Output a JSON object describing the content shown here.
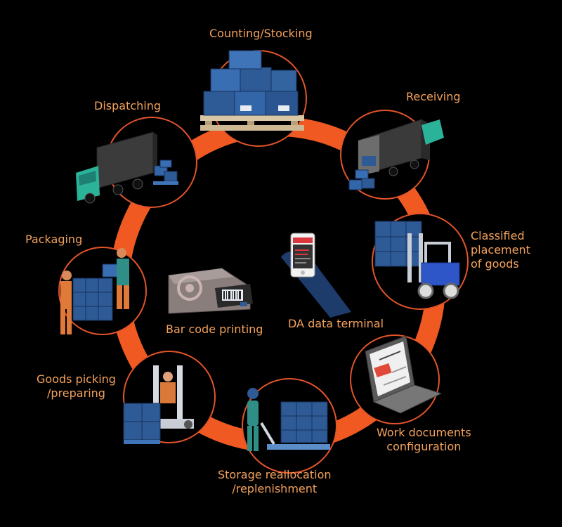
{
  "colors": {
    "background": "#000000",
    "ring": "#f05a22",
    "node_ring": "#e2542a",
    "label": "#f4a25c",
    "box_blue": "#2e5a96",
    "box_dark": "#1d3c6b",
    "truck_cab": "#2bb39a"
  },
  "nodes": [
    {
      "id": "counting",
      "icon": "pallet-boxes-icon",
      "lines": [
        "Counting/Stocking"
      ]
    },
    {
      "id": "receiving",
      "icon": "truck-unloading-icon",
      "lines": [
        "Receiving"
      ]
    },
    {
      "id": "classified",
      "icon": "forklift-icon",
      "lines": [
        "Classified",
        "placement",
        "of goods"
      ]
    },
    {
      "id": "workdocs",
      "icon": "laptop-icon",
      "lines": [
        "Work documents",
        "configuration"
      ]
    },
    {
      "id": "storage",
      "icon": "pallet-jack-worker-icon",
      "lines": [
        "Storage reallocation",
        "/replenishment"
      ]
    },
    {
      "id": "picking",
      "icon": "order-picker-icon",
      "lines": [
        "Goods picking",
        "/preparing"
      ]
    },
    {
      "id": "packaging",
      "icon": "workers-packing-icon",
      "lines": [
        "Packaging"
      ]
    },
    {
      "id": "dispatching",
      "icon": "truck-dispatch-icon",
      "lines": [
        "Dispatching"
      ]
    }
  ],
  "center": {
    "printer": {
      "icon": "barcode-printer-icon",
      "label": "Bar code printing"
    },
    "terminal": {
      "icon": "handheld-terminal-icon",
      "label": "DA data terminal"
    }
  }
}
